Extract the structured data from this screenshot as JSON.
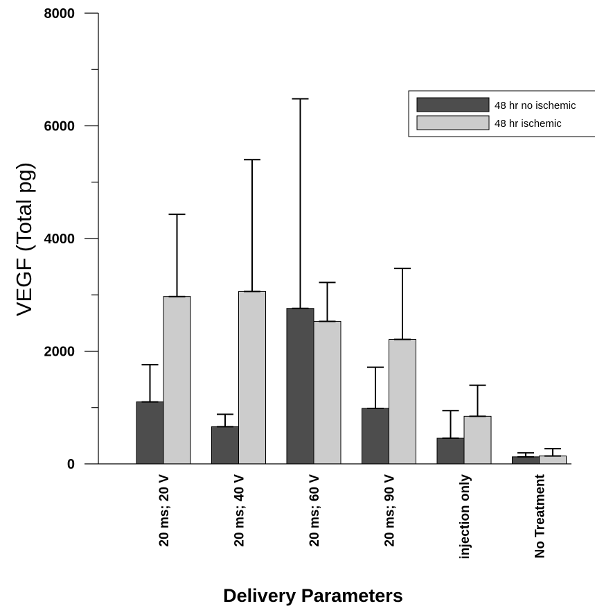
{
  "chart_data": {
    "type": "bar",
    "title": "",
    "xlabel": "Delivery Parameters",
    "ylabel": "VEGF (Total pg)",
    "ylim": [
      0,
      8000
    ],
    "yticks": [
      0,
      2000,
      4000,
      6000,
      8000
    ],
    "minor_step": 1000,
    "grid": false,
    "legend_position": "top-right",
    "categories": [
      "20 ms; 20 V",
      "20 ms; 40 V",
      "20 ms; 60 V",
      "20 ms; 90 V",
      "injection only",
      "No Treatment"
    ],
    "series": [
      {
        "name": "48 hr no ischemic",
        "color": "#4d4d4d",
        "values": [
          1100,
          660,
          2760,
          985,
          455,
          125
        ],
        "error": [
          660,
          220,
          3720,
          730,
          490,
          70
        ]
      },
      {
        "name": "48 hr ischemic",
        "color": "#cccccc",
        "values": [
          2970,
          3060,
          2530,
          2210,
          845,
          140
        ],
        "error": [
          1460,
          2340,
          690,
          1260,
          550,
          130
        ]
      }
    ]
  }
}
